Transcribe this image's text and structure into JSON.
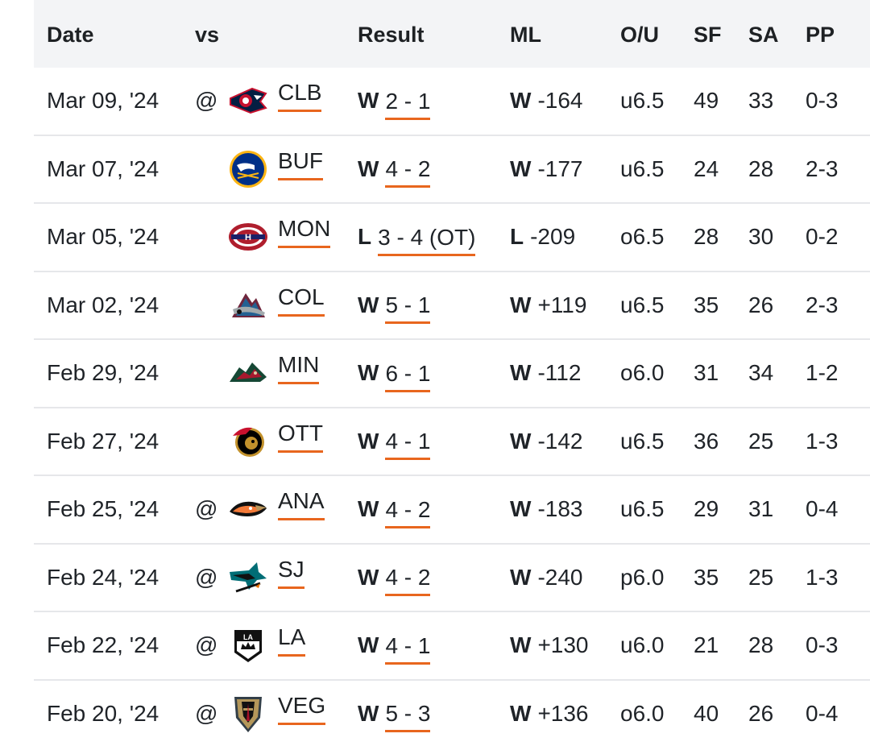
{
  "headers": {
    "date": "Date",
    "vs": "vs",
    "result": "Result",
    "ml": "ML",
    "ou": "O/U",
    "sf": "SF",
    "sa": "SA",
    "pp": "PP"
  },
  "accent_color": "#e8661e",
  "rows": [
    {
      "date": "Mar 09, '24",
      "at": "@",
      "team": "CLB",
      "logo": "blue-jackets-logo",
      "res_wl": "W",
      "score": "2 - 1",
      "ml_wl": "W",
      "ml": "-164",
      "ou": "u6.5",
      "sf": "49",
      "sa": "33",
      "pp": "0-3"
    },
    {
      "date": "Mar 07, '24",
      "at": "",
      "team": "BUF",
      "logo": "sabres-logo",
      "res_wl": "W",
      "score": "4 - 2",
      "ml_wl": "W",
      "ml": "-177",
      "ou": "u6.5",
      "sf": "24",
      "sa": "28",
      "pp": "2-3"
    },
    {
      "date": "Mar 05, '24",
      "at": "",
      "team": "MON",
      "logo": "canadiens-logo",
      "res_wl": "L",
      "score": "3 - 4 (OT)",
      "ml_wl": "L",
      "ml": "-209",
      "ou": "o6.5",
      "sf": "28",
      "sa": "30",
      "pp": "0-2"
    },
    {
      "date": "Mar 02, '24",
      "at": "",
      "team": "COL",
      "logo": "avalanche-logo",
      "res_wl": "W",
      "score": "5 - 1",
      "ml_wl": "W",
      "ml": "+119",
      "ou": "u6.5",
      "sf": "35",
      "sa": "26",
      "pp": "2-3"
    },
    {
      "date": "Feb 29, '24",
      "at": "",
      "team": "MIN",
      "logo": "wild-logo",
      "res_wl": "W",
      "score": "6 - 1",
      "ml_wl": "W",
      "ml": "-112",
      "ou": "o6.0",
      "sf": "31",
      "sa": "34",
      "pp": "1-2"
    },
    {
      "date": "Feb 27, '24",
      "at": "",
      "team": "OTT",
      "logo": "senators-logo",
      "res_wl": "W",
      "score": "4 - 1",
      "ml_wl": "W",
      "ml": "-142",
      "ou": "u6.5",
      "sf": "36",
      "sa": "25",
      "pp": "1-3"
    },
    {
      "date": "Feb 25, '24",
      "at": "@",
      "team": "ANA",
      "logo": "ducks-logo",
      "res_wl": "W",
      "score": "4 - 2",
      "ml_wl": "W",
      "ml": "-183",
      "ou": "u6.5",
      "sf": "29",
      "sa": "31",
      "pp": "0-4"
    },
    {
      "date": "Feb 24, '24",
      "at": "@",
      "team": "SJ",
      "logo": "sharks-logo",
      "res_wl": "W",
      "score": "4 - 2",
      "ml_wl": "W",
      "ml": "-240",
      "ou": "p6.0",
      "sf": "35",
      "sa": "25",
      "pp": "1-3"
    },
    {
      "date": "Feb 22, '24",
      "at": "@",
      "team": "LA",
      "logo": "kings-logo",
      "res_wl": "W",
      "score": "4 - 1",
      "ml_wl": "W",
      "ml": "+130",
      "ou": "u6.0",
      "sf": "21",
      "sa": "28",
      "pp": "0-3"
    },
    {
      "date": "Feb 20, '24",
      "at": "@",
      "team": "VEG",
      "logo": "golden-knights-logo",
      "res_wl": "W",
      "score": "5 - 3",
      "ml_wl": "W",
      "ml": "+136",
      "ou": "o6.0",
      "sf": "40",
      "sa": "26",
      "pp": "0-4"
    }
  ]
}
